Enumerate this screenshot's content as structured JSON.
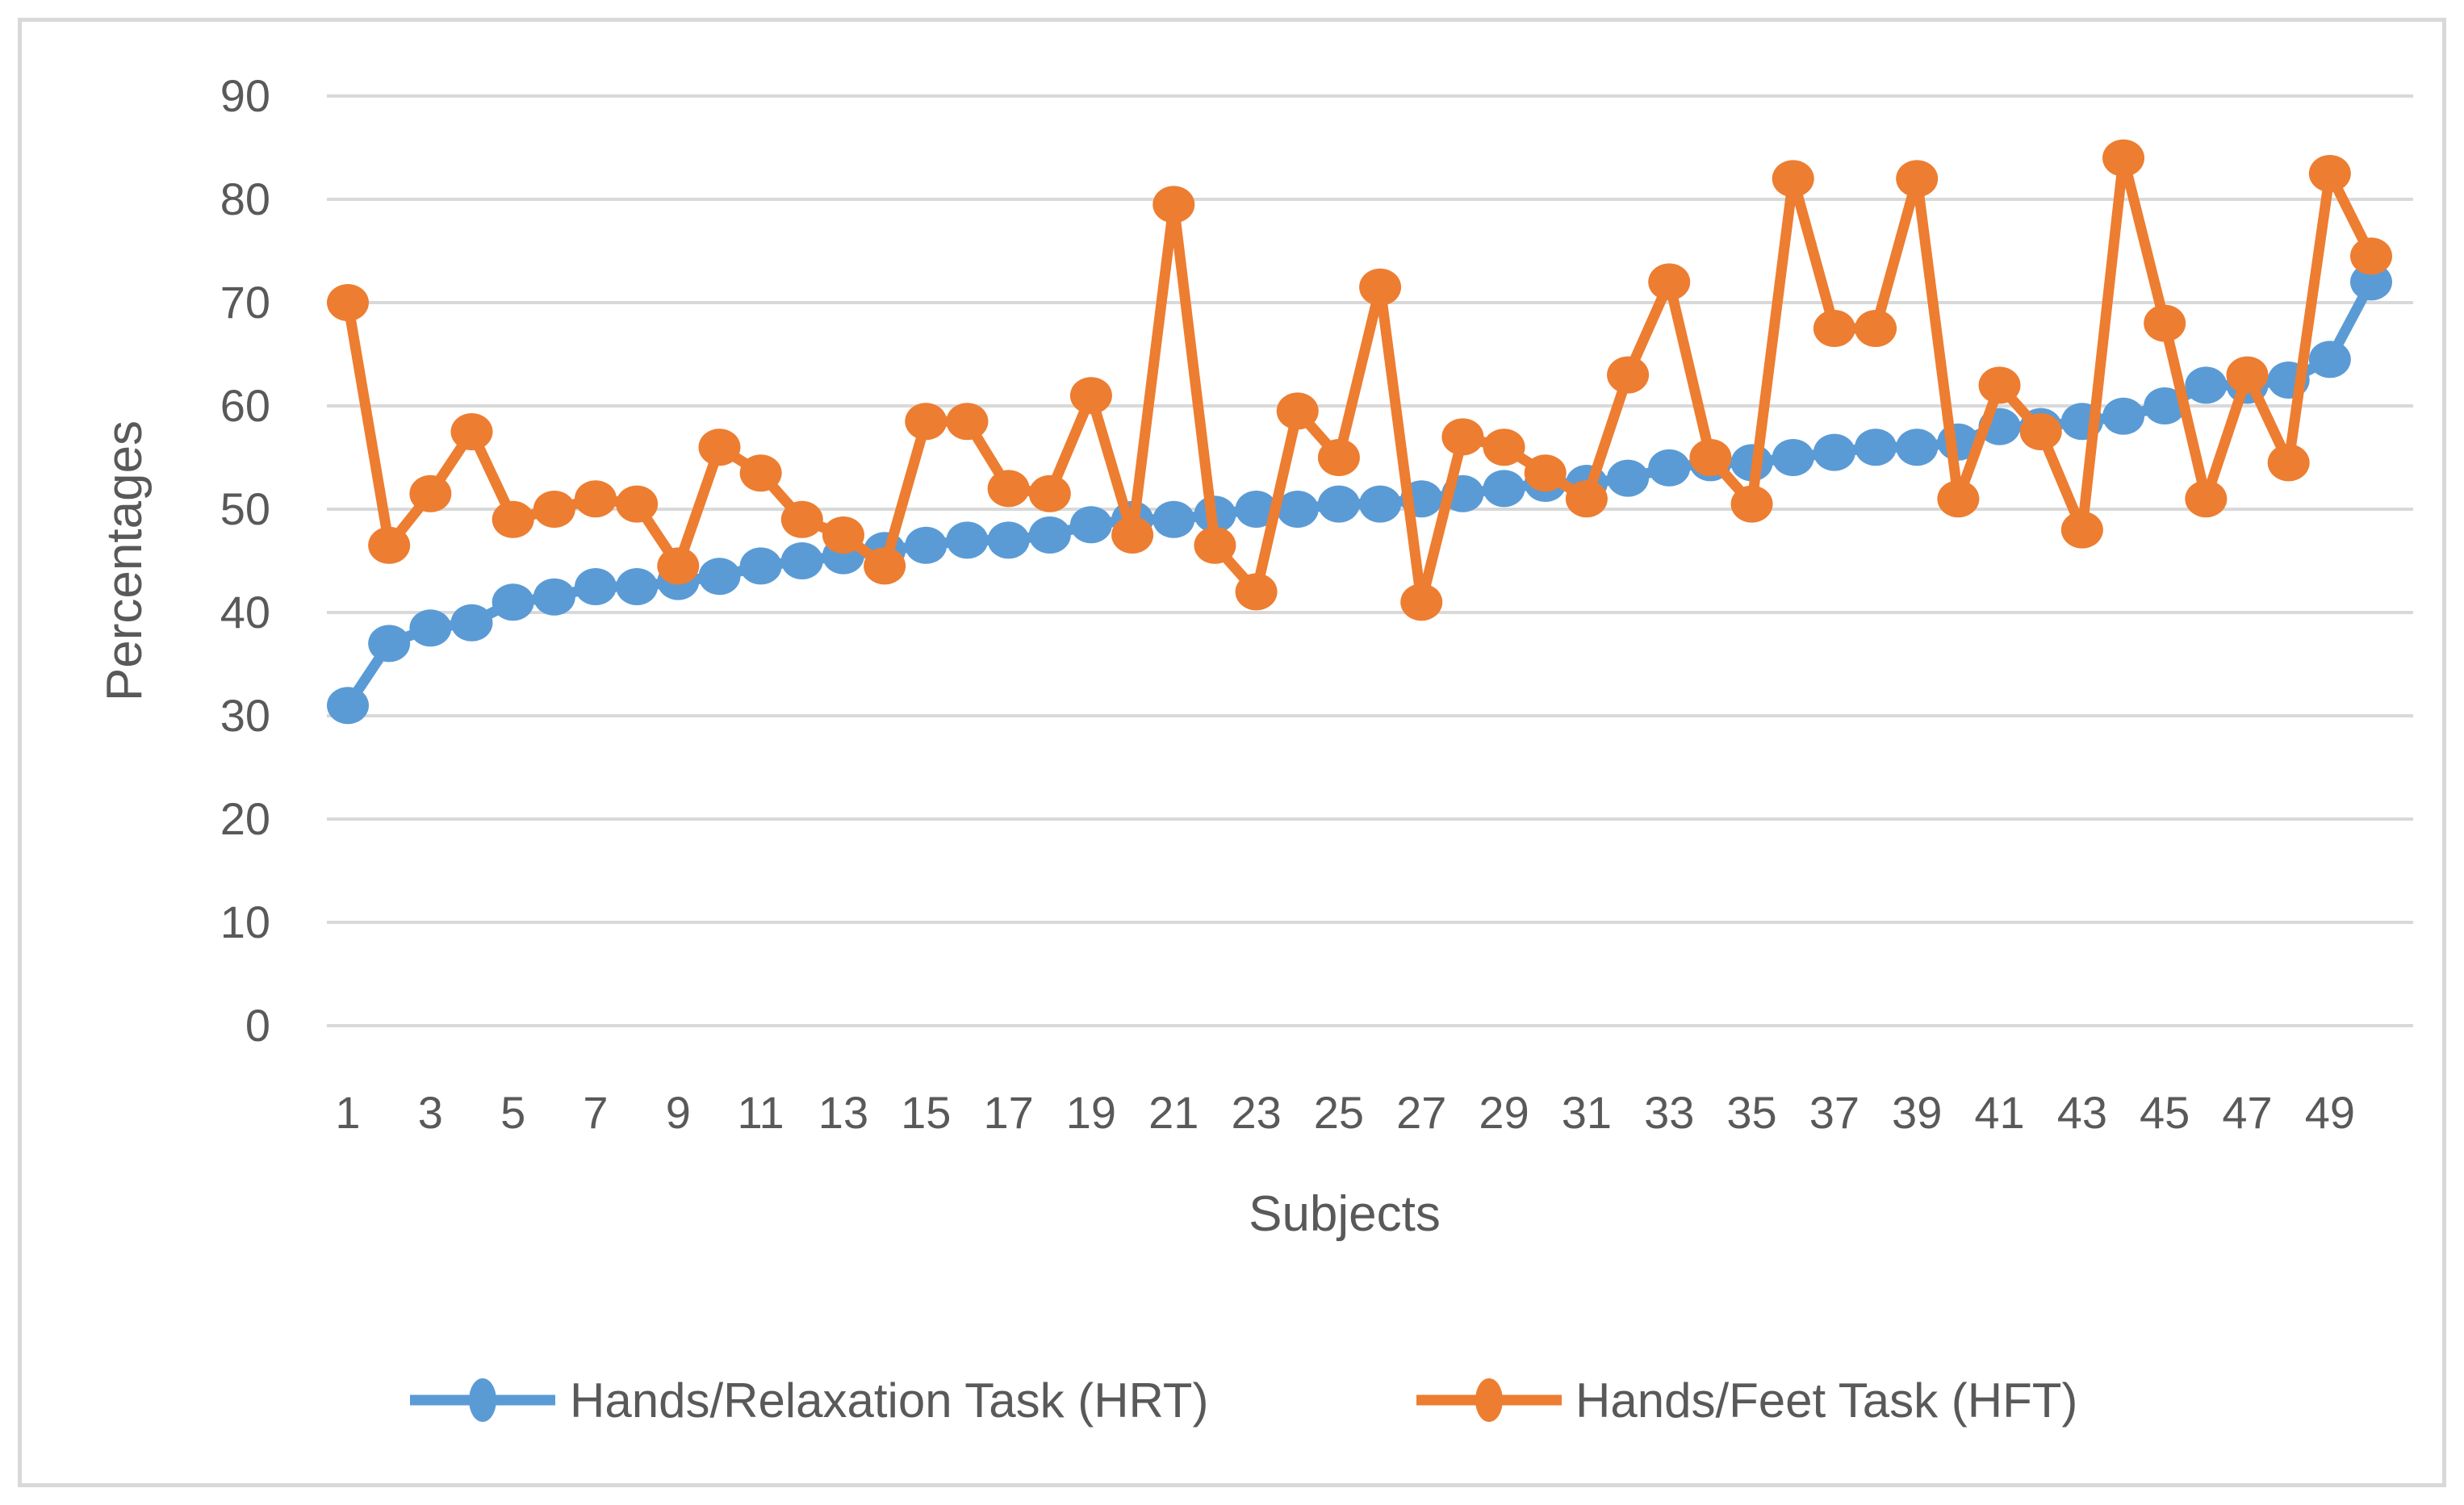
{
  "figure": {
    "background": "#FFFFFF",
    "border_color": "#D9D9D9",
    "text_color": "#595959",
    "gridline_color": "#D9D9D9"
  },
  "chart_data": {
    "type": "line",
    "title": "",
    "xlabel": "Subjects",
    "ylabel": "Percentages",
    "ylim": [
      0,
      90
    ],
    "yticks": [
      0,
      10,
      20,
      30,
      40,
      50,
      60,
      70,
      80,
      90
    ],
    "xticks": [
      1,
      3,
      5,
      7,
      9,
      11,
      13,
      15,
      17,
      19,
      21,
      23,
      25,
      27,
      29,
      31,
      33,
      35,
      37,
      39,
      41,
      43,
      45,
      47,
      49
    ],
    "x": [
      1,
      2,
      3,
      4,
      5,
      6,
      7,
      8,
      9,
      10,
      11,
      12,
      13,
      14,
      15,
      16,
      17,
      18,
      19,
      20,
      21,
      22,
      23,
      24,
      25,
      26,
      27,
      28,
      29,
      30,
      31,
      32,
      33,
      34,
      35,
      36,
      37,
      38,
      39,
      40,
      41,
      42,
      43,
      44,
      45,
      46,
      47,
      48,
      49,
      50
    ],
    "grid": "horizontal",
    "legend_position": "bottom",
    "series": [
      {
        "name": "Hands/Relaxation Task (HRT)",
        "color": "#5B9BD5",
        "values": [
          31,
          37,
          38.5,
          39,
          41,
          41.5,
          42.5,
          42.5,
          43,
          43.5,
          44.5,
          45,
          45.5,
          46,
          46.5,
          47,
          47,
          47.5,
          48.5,
          49,
          49,
          49.5,
          50,
          50,
          50.5,
          50.5,
          51,
          51.5,
          52,
          52.5,
          52.5,
          53,
          54,
          54.5,
          54.5,
          55,
          55.5,
          56,
          56,
          56.5,
          58,
          58,
          58.5,
          59,
          60,
          62,
          62,
          62.5,
          64.5,
          72
        ]
      },
      {
        "name": "Hands/Feet Task (HFT)",
        "color": "#ED7D31",
        "values": [
          70,
          46.5,
          51.5,
          57.5,
          49,
          50,
          51,
          50.5,
          44.5,
          56,
          53.5,
          49,
          47.5,
          44.5,
          58.5,
          58.5,
          52,
          51.5,
          61,
          47.5,
          79.5,
          46.5,
          42,
          59.5,
          55,
          71.5,
          41,
          57,
          56,
          53.5,
          51,
          63,
          72,
          55,
          50.5,
          82,
          67.5,
          67.5,
          82,
          51,
          62,
          57.5,
          48,
          84,
          68,
          51,
          63,
          54.5,
          82.5,
          74.5
        ]
      }
    ]
  }
}
